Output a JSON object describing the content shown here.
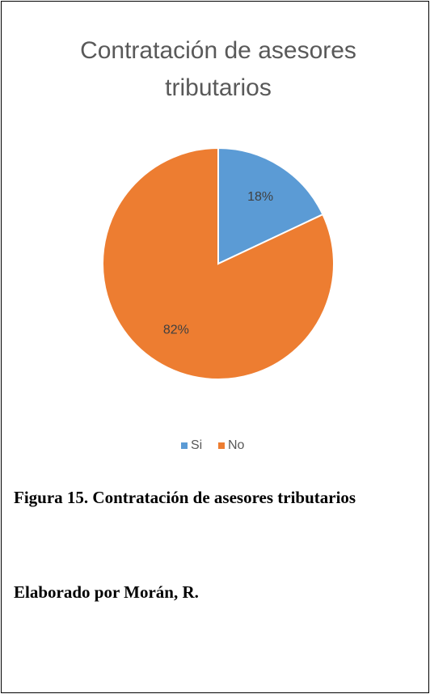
{
  "chart_data": {
    "type": "pie",
    "title": "Contratación de asesores tributarios",
    "categories": [
      "Si",
      "No"
    ],
    "values": [
      18,
      82
    ],
    "value_labels": [
      "18%",
      "82%"
    ],
    "colors": [
      "#5b9bd5",
      "#ed7d31"
    ],
    "legend": "bottom"
  },
  "caption": "Figura 15. Contratación de asesores tributarios",
  "credit": "Elaborado por Morán, R."
}
